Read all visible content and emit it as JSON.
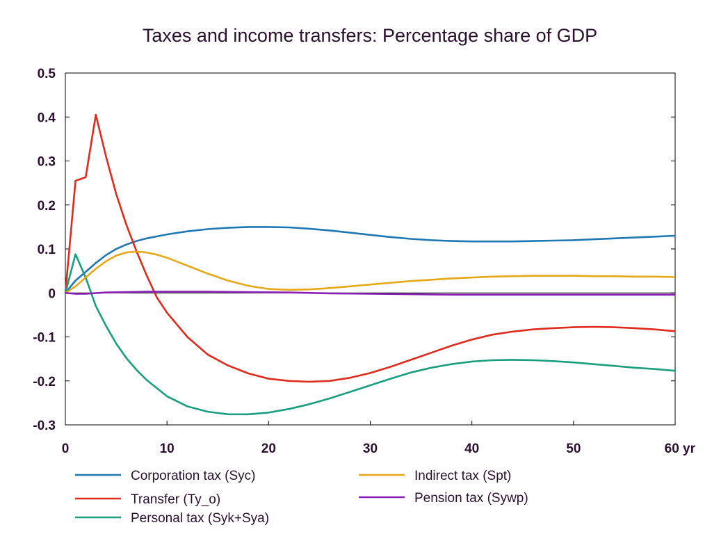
{
  "chart_data": {
    "type": "line",
    "title": "Taxes and income transfers: Percentage share of GDP",
    "xlabel": "",
    "ylabel": "",
    "x_unit_label": "yr",
    "xlim": [
      0,
      60
    ],
    "ylim": [
      -0.3,
      0.5
    ],
    "x_ticks": [
      0,
      10,
      20,
      30,
      40,
      50,
      60
    ],
    "x_tick_labels": [
      "0",
      "10",
      "20",
      "30",
      "40",
      "50",
      "60 yr"
    ],
    "y_ticks": [
      0.5,
      0.4,
      0.3,
      0.2,
      0.1,
      0,
      -0.1,
      -0.2,
      -0.3
    ],
    "y_tick_labels": [
      "0.5",
      "0.4",
      "0.3",
      "0.2",
      "0.1",
      "0",
      "-0.1",
      "-0.2",
      "-0.3"
    ],
    "grid": false,
    "zero_line": true,
    "legend_position": "bottom",
    "series": [
      {
        "name": "Corporation tax (Syc)",
        "color": "#1f77b4",
        "x": [
          0,
          1,
          2,
          3,
          4,
          5,
          6,
          7,
          8,
          10,
          12,
          14,
          16,
          18,
          20,
          22,
          24,
          26,
          28,
          30,
          32,
          34,
          36,
          38,
          40,
          42,
          44,
          46,
          48,
          50,
          52,
          54,
          56,
          58,
          60
        ],
        "y": [
          0,
          0.028,
          0.048,
          0.068,
          0.086,
          0.1,
          0.11,
          0.118,
          0.124,
          0.133,
          0.14,
          0.145,
          0.148,
          0.15,
          0.15,
          0.149,
          0.146,
          0.142,
          0.137,
          0.132,
          0.127,
          0.123,
          0.12,
          0.118,
          0.117,
          0.117,
          0.117,
          0.118,
          0.119,
          0.12,
          0.122,
          0.124,
          0.126,
          0.128,
          0.13
        ]
      },
      {
        "name": "Transfer (Ty_o)",
        "color": "#e02a1b",
        "x": [
          0,
          1,
          2,
          3,
          4,
          5,
          6,
          7,
          8,
          9,
          10,
          12,
          14,
          16,
          18,
          20,
          22,
          24,
          26,
          28,
          30,
          32,
          34,
          36,
          38,
          40,
          42,
          44,
          46,
          48,
          50,
          52,
          54,
          56,
          58,
          60
        ],
        "y": [
          0,
          0.255,
          0.263,
          0.405,
          0.31,
          0.225,
          0.155,
          0.095,
          0.04,
          -0.01,
          -0.045,
          -0.1,
          -0.14,
          -0.165,
          -0.183,
          -0.195,
          -0.2,
          -0.202,
          -0.2,
          -0.193,
          -0.182,
          -0.168,
          -0.152,
          -0.136,
          -0.12,
          -0.106,
          -0.095,
          -0.088,
          -0.083,
          -0.08,
          -0.078,
          -0.077,
          -0.078,
          -0.08,
          -0.083,
          -0.087
        ]
      },
      {
        "name": "Personal tax (Syk+Sya)",
        "color": "#1a9e80",
        "x": [
          0,
          1,
          2,
          3,
          4,
          5,
          6,
          7,
          8,
          10,
          12,
          14,
          16,
          18,
          20,
          22,
          24,
          26,
          28,
          30,
          32,
          34,
          36,
          38,
          40,
          42,
          44,
          46,
          48,
          50,
          52,
          54,
          56,
          58,
          60
        ],
        "y": [
          0,
          0.088,
          0.035,
          -0.03,
          -0.075,
          -0.115,
          -0.148,
          -0.175,
          -0.198,
          -0.235,
          -0.258,
          -0.27,
          -0.276,
          -0.276,
          -0.272,
          -0.264,
          -0.253,
          -0.24,
          -0.225,
          -0.21,
          -0.195,
          -0.181,
          -0.17,
          -0.162,
          -0.156,
          -0.153,
          -0.152,
          -0.153,
          -0.155,
          -0.158,
          -0.162,
          -0.166,
          -0.17,
          -0.173,
          -0.177
        ]
      },
      {
        "name": "Indirect tax (Spt)",
        "color": "#e6a817",
        "x": [
          0,
          1,
          2,
          3,
          4,
          5,
          6,
          7,
          8,
          9,
          10,
          12,
          14,
          16,
          18,
          20,
          22,
          24,
          26,
          28,
          30,
          32,
          34,
          36,
          38,
          40,
          42,
          44,
          46,
          48,
          50,
          52,
          54,
          56,
          58,
          60
        ],
        "y": [
          0,
          0.015,
          0.035,
          0.055,
          0.072,
          0.085,
          0.092,
          0.094,
          0.092,
          0.087,
          0.08,
          0.062,
          0.044,
          0.028,
          0.016,
          0.009,
          0.007,
          0.008,
          0.011,
          0.015,
          0.019,
          0.023,
          0.027,
          0.03,
          0.033,
          0.035,
          0.037,
          0.038,
          0.039,
          0.039,
          0.039,
          0.038,
          0.038,
          0.037,
          0.037,
          0.036
        ]
      },
      {
        "name": "Pension tax (Sywp)",
        "color": "#8b1fb8",
        "x": [
          0,
          1,
          2,
          4,
          6,
          8,
          10,
          14,
          18,
          22,
          26,
          30,
          34,
          38,
          42,
          46,
          50,
          54,
          58,
          60
        ],
        "y": [
          0,
          -0.002,
          -0.002,
          0.001,
          0.002,
          0.003,
          0.003,
          0.003,
          0.002,
          0.001,
          -0.001,
          -0.002,
          -0.003,
          -0.004,
          -0.004,
          -0.004,
          -0.004,
          -0.004,
          -0.004,
          -0.004
        ]
      }
    ]
  }
}
